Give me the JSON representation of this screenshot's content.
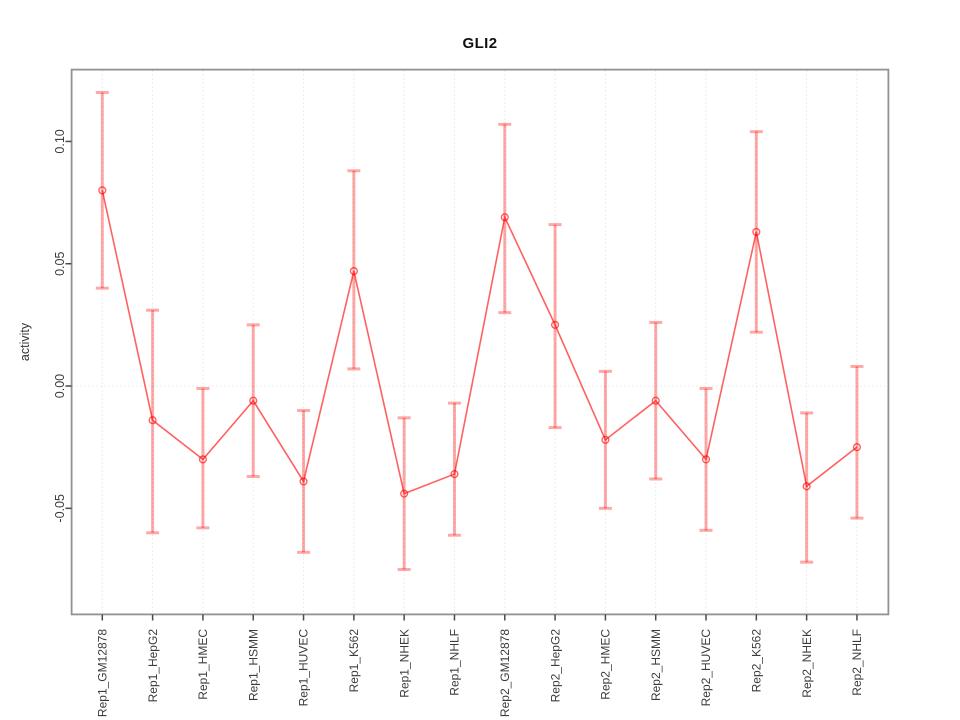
{
  "chart_data": {
    "type": "line",
    "title": "GLI2",
    "xlabel": "",
    "ylabel": "activity",
    "legend": "none",
    "point_style": "open-circle",
    "grid": "vertical dotted line at each category; horizontal dotted line at 0",
    "zero_line": true,
    "categories": [
      "Rep1_GM12878",
      "Rep1_HepG2",
      "Rep1_HMEC",
      "Rep1_HSMM",
      "Rep1_HUVEC",
      "Rep1_K562",
      "Rep1_NHEK",
      "Rep1_NHLF",
      "Rep2_GM12878",
      "Rep2_HepG2",
      "Rep2_HMEC",
      "Rep2_HSMM",
      "Rep2_HUVEC",
      "Rep2_K562",
      "Rep2_NHEK",
      "Rep2_NHLF"
    ],
    "values": [
      0.08,
      -0.014,
      -0.03,
      -0.006,
      -0.039,
      0.047,
      -0.044,
      -0.036,
      0.069,
      0.025,
      -0.022,
      -0.006,
      -0.03,
      0.063,
      -0.041,
      -0.025
    ],
    "error_high": [
      0.12,
      0.031,
      -0.001,
      0.025,
      -0.01,
      0.088,
      -0.013,
      -0.007,
      0.107,
      0.066,
      0.006,
      0.026,
      -0.001,
      0.104,
      -0.011,
      0.008
    ],
    "error_low": [
      0.04,
      -0.06,
      -0.058,
      -0.037,
      -0.068,
      0.007,
      -0.075,
      -0.061,
      0.03,
      -0.017,
      -0.05,
      -0.038,
      -0.059,
      0.022,
      -0.072,
      -0.054
    ],
    "y_ticks": [
      -0.05,
      0.0,
      0.05,
      0.1
    ],
    "y_tick_labels": [
      "-0.05",
      "0.00",
      "0.05",
      "0.10"
    ],
    "ylim": [
      -0.093,
      0.129
    ],
    "colors": {
      "series_line": "rgba(255,0,0,0.62)",
      "point_stroke": "rgba(255,0,0,0.62)",
      "error_bar": "rgba(255,0,0,0.34)",
      "grid": "#d9d9d9",
      "zero_line": "#dcdcdc",
      "plot_border": "#929292",
      "tick": "#4a4a4a",
      "tick_label": "#3c3c3c",
      "background": "#ffffff"
    }
  }
}
